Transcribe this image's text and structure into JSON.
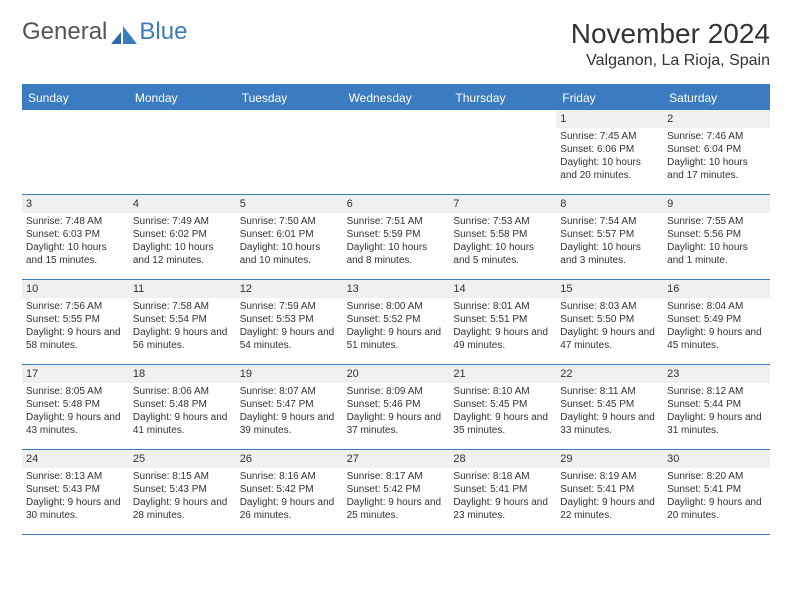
{
  "logo": {
    "text1": "General",
    "text2": "Blue"
  },
  "header": {
    "month_title": "November 2024",
    "location": "Valganon, La Rioja, Spain"
  },
  "style": {
    "accent_color": "#3b7bbf",
    "header_bg": "#3b7bbf",
    "header_text_color": "#ffffff",
    "daynum_bg": "#eef0f2",
    "body_text_color": "#333333",
    "page_bg": "#ffffff",
    "title_fontsize_pt": 21,
    "location_fontsize_pt": 12,
    "dow_fontsize_pt": 9,
    "cell_fontsize_pt": 7.5
  },
  "calendar": {
    "type": "table",
    "days_of_week": [
      "Sunday",
      "Monday",
      "Tuesday",
      "Wednesday",
      "Thursday",
      "Friday",
      "Saturday"
    ],
    "weeks": [
      [
        null,
        null,
        null,
        null,
        null,
        {
          "n": "1",
          "sunrise": "Sunrise: 7:45 AM",
          "sunset": "Sunset: 6:06 PM",
          "daylight": "Daylight: 10 hours and 20 minutes."
        },
        {
          "n": "2",
          "sunrise": "Sunrise: 7:46 AM",
          "sunset": "Sunset: 6:04 PM",
          "daylight": "Daylight: 10 hours and 17 minutes."
        }
      ],
      [
        {
          "n": "3",
          "sunrise": "Sunrise: 7:48 AM",
          "sunset": "Sunset: 6:03 PM",
          "daylight": "Daylight: 10 hours and 15 minutes."
        },
        {
          "n": "4",
          "sunrise": "Sunrise: 7:49 AM",
          "sunset": "Sunset: 6:02 PM",
          "daylight": "Daylight: 10 hours and 12 minutes."
        },
        {
          "n": "5",
          "sunrise": "Sunrise: 7:50 AM",
          "sunset": "Sunset: 6:01 PM",
          "daylight": "Daylight: 10 hours and 10 minutes."
        },
        {
          "n": "6",
          "sunrise": "Sunrise: 7:51 AM",
          "sunset": "Sunset: 5:59 PM",
          "daylight": "Daylight: 10 hours and 8 minutes."
        },
        {
          "n": "7",
          "sunrise": "Sunrise: 7:53 AM",
          "sunset": "Sunset: 5:58 PM",
          "daylight": "Daylight: 10 hours and 5 minutes."
        },
        {
          "n": "8",
          "sunrise": "Sunrise: 7:54 AM",
          "sunset": "Sunset: 5:57 PM",
          "daylight": "Daylight: 10 hours and 3 minutes."
        },
        {
          "n": "9",
          "sunrise": "Sunrise: 7:55 AM",
          "sunset": "Sunset: 5:56 PM",
          "daylight": "Daylight: 10 hours and 1 minute."
        }
      ],
      [
        {
          "n": "10",
          "sunrise": "Sunrise: 7:56 AM",
          "sunset": "Sunset: 5:55 PM",
          "daylight": "Daylight: 9 hours and 58 minutes."
        },
        {
          "n": "11",
          "sunrise": "Sunrise: 7:58 AM",
          "sunset": "Sunset: 5:54 PM",
          "daylight": "Daylight: 9 hours and 56 minutes."
        },
        {
          "n": "12",
          "sunrise": "Sunrise: 7:59 AM",
          "sunset": "Sunset: 5:53 PM",
          "daylight": "Daylight: 9 hours and 54 minutes."
        },
        {
          "n": "13",
          "sunrise": "Sunrise: 8:00 AM",
          "sunset": "Sunset: 5:52 PM",
          "daylight": "Daylight: 9 hours and 51 minutes."
        },
        {
          "n": "14",
          "sunrise": "Sunrise: 8:01 AM",
          "sunset": "Sunset: 5:51 PM",
          "daylight": "Daylight: 9 hours and 49 minutes."
        },
        {
          "n": "15",
          "sunrise": "Sunrise: 8:03 AM",
          "sunset": "Sunset: 5:50 PM",
          "daylight": "Daylight: 9 hours and 47 minutes."
        },
        {
          "n": "16",
          "sunrise": "Sunrise: 8:04 AM",
          "sunset": "Sunset: 5:49 PM",
          "daylight": "Daylight: 9 hours and 45 minutes."
        }
      ],
      [
        {
          "n": "17",
          "sunrise": "Sunrise: 8:05 AM",
          "sunset": "Sunset: 5:48 PM",
          "daylight": "Daylight: 9 hours and 43 minutes."
        },
        {
          "n": "18",
          "sunrise": "Sunrise: 8:06 AM",
          "sunset": "Sunset: 5:48 PM",
          "daylight": "Daylight: 9 hours and 41 minutes."
        },
        {
          "n": "19",
          "sunrise": "Sunrise: 8:07 AM",
          "sunset": "Sunset: 5:47 PM",
          "daylight": "Daylight: 9 hours and 39 minutes."
        },
        {
          "n": "20",
          "sunrise": "Sunrise: 8:09 AM",
          "sunset": "Sunset: 5:46 PM",
          "daylight": "Daylight: 9 hours and 37 minutes."
        },
        {
          "n": "21",
          "sunrise": "Sunrise: 8:10 AM",
          "sunset": "Sunset: 5:45 PM",
          "daylight": "Daylight: 9 hours and 35 minutes."
        },
        {
          "n": "22",
          "sunrise": "Sunrise: 8:11 AM",
          "sunset": "Sunset: 5:45 PM",
          "daylight": "Daylight: 9 hours and 33 minutes."
        },
        {
          "n": "23",
          "sunrise": "Sunrise: 8:12 AM",
          "sunset": "Sunset: 5:44 PM",
          "daylight": "Daylight: 9 hours and 31 minutes."
        }
      ],
      [
        {
          "n": "24",
          "sunrise": "Sunrise: 8:13 AM",
          "sunset": "Sunset: 5:43 PM",
          "daylight": "Daylight: 9 hours and 30 minutes."
        },
        {
          "n": "25",
          "sunrise": "Sunrise: 8:15 AM",
          "sunset": "Sunset: 5:43 PM",
          "daylight": "Daylight: 9 hours and 28 minutes."
        },
        {
          "n": "26",
          "sunrise": "Sunrise: 8:16 AM",
          "sunset": "Sunset: 5:42 PM",
          "daylight": "Daylight: 9 hours and 26 minutes."
        },
        {
          "n": "27",
          "sunrise": "Sunrise: 8:17 AM",
          "sunset": "Sunset: 5:42 PM",
          "daylight": "Daylight: 9 hours and 25 minutes."
        },
        {
          "n": "28",
          "sunrise": "Sunrise: 8:18 AM",
          "sunset": "Sunset: 5:41 PM",
          "daylight": "Daylight: 9 hours and 23 minutes."
        },
        {
          "n": "29",
          "sunrise": "Sunrise: 8:19 AM",
          "sunset": "Sunset: 5:41 PM",
          "daylight": "Daylight: 9 hours and 22 minutes."
        },
        {
          "n": "30",
          "sunrise": "Sunrise: 8:20 AM",
          "sunset": "Sunset: 5:41 PM",
          "daylight": "Daylight: 9 hours and 20 minutes."
        }
      ]
    ]
  }
}
